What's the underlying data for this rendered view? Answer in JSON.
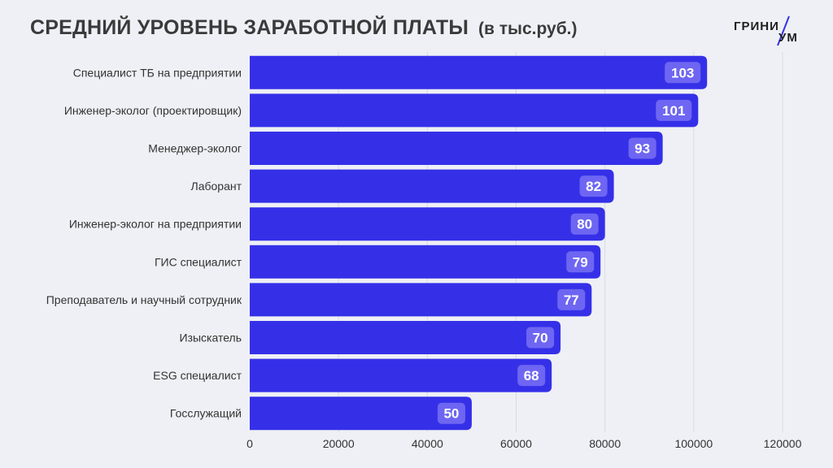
{
  "header": {
    "title": "СРЕДНИЙ УРОВЕНЬ ЗАРАБОТНОЙ ПЛАТЫ",
    "unit": "(в тыс.руб.)"
  },
  "logo": {
    "part1": "ГРИНИ",
    "part2": "УМ"
  },
  "colors": {
    "bar": "#3530e8",
    "value_badge": "#6e66f2",
    "grid": "#d9dbe3",
    "background": "#eef0f5"
  },
  "chart_data": {
    "type": "bar",
    "orientation": "horizontal",
    "title": "СРЕДНИЙ УРОВЕНЬ ЗАРАБОТНОЙ ПЛАТЫ",
    "subtitle": "(в тыс.руб.)",
    "categories": [
      "Специалист ТБ на предприятии",
      "Инженер-эколог (проектировщик)",
      "Менеджер-эколог",
      "Лаборант",
      "Инженер-эколог на предприятии",
      "ГИС специалист",
      "Преподаватель и научный сотрудник",
      "Изыскатель",
      "ESG специалист",
      "Госслужащий"
    ],
    "values": [
      103000,
      101000,
      93000,
      82000,
      80000,
      79000,
      77000,
      70000,
      68000,
      50000
    ],
    "data_labels": [
      "103",
      "101",
      "93",
      "82",
      "80",
      "79",
      "77",
      "70",
      "68",
      "50"
    ],
    "xticks": [
      0,
      20000,
      40000,
      60000,
      80000,
      100000,
      120000
    ],
    "xtick_labels": [
      "0",
      "20000",
      "40000",
      "60000",
      "80000",
      "100000",
      "120000"
    ],
    "xlim": [
      0,
      120000
    ],
    "grid": true,
    "legend": "none"
  }
}
